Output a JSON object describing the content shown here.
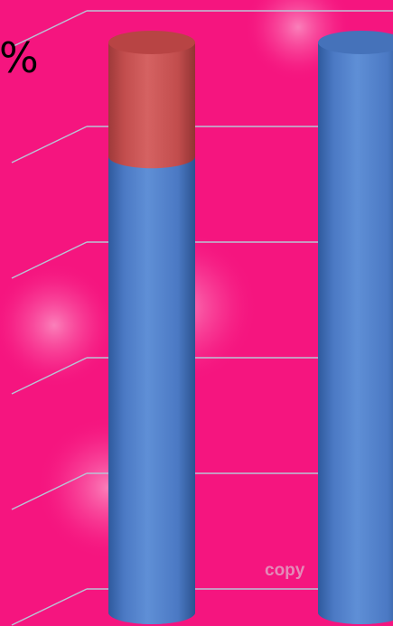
{
  "chart_data": {
    "type": "bar",
    "style": "3d-cylinder-stacked",
    "categories": [
      "",
      ""
    ],
    "series": [
      {
        "color": "#4b79c4",
        "values": [
          80,
          100
        ]
      },
      {
        "color": "#c95353",
        "values": [
          20,
          0
        ]
      }
    ],
    "ylim": [
      0,
      100
    ],
    "y_tick_count": 6,
    "y_unit_symbol": "%",
    "grid": true,
    "background_color": "#f5157f",
    "gridline_color": "#b9c3d6",
    "watermark_text": "copy"
  }
}
